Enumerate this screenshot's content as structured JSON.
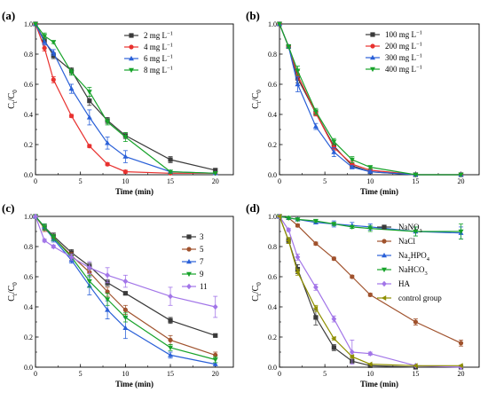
{
  "chart_data": [
    {
      "type": "line",
      "panel_label": "(a)",
      "xlabel": "Time (min)",
      "ylabel": "C",
      "ylabel_sub": "t",
      "ylabel_den": "/C",
      "ylabel_den_sub": "0",
      "xlim": [
        0,
        22
      ],
      "ylim": [
        0,
        1.0
      ],
      "xticks": [
        0,
        5,
        10,
        15,
        20
      ],
      "yticks": [
        0,
        0.2,
        0.4,
        0.6,
        0.8,
        1.0
      ],
      "xtick_labels": [
        "0",
        "5",
        "10",
        "15",
        "20"
      ],
      "ytick_labels": [
        "0.0",
        "0.2",
        "0.4",
        "0.6",
        "0.8",
        "1.0"
      ],
      "legend_position": "top-center",
      "x": [
        0,
        1,
        2,
        4,
        6,
        8,
        10,
        15,
        20
      ],
      "series": [
        {
          "name": "2 mg L",
          "unit_sup": "−1",
          "color": "#3a3a3a",
          "marker": "square",
          "values": [
            1.0,
            0.89,
            0.79,
            0.69,
            0.49,
            0.36,
            0.26,
            0.1,
            0.03
          ],
          "errors": [
            0,
            0.02,
            0.02,
            0.02,
            0.03,
            0.02,
            0.02,
            0.02,
            0.01
          ]
        },
        {
          "name": "4 mg L",
          "unit_sup": "−1",
          "color": "#e8312f",
          "marker": "circle",
          "values": [
            1.0,
            0.84,
            0.63,
            0.39,
            0.19,
            0.07,
            0.02,
            0.01,
            0.01
          ],
          "errors": [
            0,
            0.02,
            0.02,
            0.01,
            0.01,
            0.01,
            0.01,
            0,
            0
          ]
        },
        {
          "name": "6 mg L",
          "unit_sup": "−1",
          "color": "#2a60d8",
          "marker": "triangle-up",
          "values": [
            1.0,
            0.88,
            0.81,
            0.57,
            0.38,
            0.21,
            0.12,
            0.02,
            0.01
          ],
          "errors": [
            0,
            0.02,
            0.02,
            0.03,
            0.05,
            0.04,
            0.04,
            0.01,
            0
          ]
        },
        {
          "name": "8 mg L",
          "unit_sup": "−1",
          "color": "#17a32a",
          "marker": "triangle-down",
          "values": [
            1.0,
            0.92,
            0.88,
            0.68,
            0.55,
            0.35,
            0.25,
            0.02,
            0.01
          ],
          "errors": [
            0,
            0.02,
            0.01,
            0.02,
            0.03,
            0.02,
            0.03,
            0.01,
            0
          ]
        }
      ]
    },
    {
      "type": "line",
      "panel_label": "(b)",
      "xlabel": "Time (min)",
      "ylabel": "C",
      "ylabel_sub": "t",
      "ylabel_den": "/C",
      "ylabel_den_sub": "0",
      "xlim": [
        0,
        22
      ],
      "ylim": [
        0,
        1.0
      ],
      "xticks": [
        0,
        5,
        10,
        15,
        20
      ],
      "yticks": [
        0,
        0.2,
        0.4,
        0.6,
        0.8,
        1.0
      ],
      "xtick_labels": [
        "0",
        "5",
        "10",
        "15",
        "20"
      ],
      "ytick_labels": [
        "0.0",
        "0.2",
        "0.4",
        "0.6",
        "0.8",
        "1.0"
      ],
      "legend_position": "top-right",
      "x": [
        0,
        1,
        2,
        4,
        6,
        8,
        10,
        15,
        20
      ],
      "series": [
        {
          "name": "100 mg L",
          "unit_sup": "−1",
          "color": "#3a3a3a",
          "marker": "square",
          "values": [
            1.0,
            0.85,
            0.64,
            0.41,
            0.19,
            0.06,
            0.02,
            0.0,
            0.0
          ],
          "errors": [
            0,
            0.01,
            0.03,
            0.02,
            0.02,
            0.02,
            0.01,
            0,
            0
          ]
        },
        {
          "name": "200 mg L",
          "unit_sup": "−1",
          "color": "#e8312f",
          "marker": "circle",
          "values": [
            1.0,
            0.85,
            0.66,
            0.41,
            0.18,
            0.07,
            0.03,
            0.0,
            0.0
          ],
          "errors": [
            0,
            0.01,
            0.03,
            0.02,
            0.02,
            0.02,
            0.01,
            0,
            0
          ]
        },
        {
          "name": "300 mg L",
          "unit_sup": "−1",
          "color": "#2a60d8",
          "marker": "triangle-up",
          "values": [
            1.0,
            0.85,
            0.6,
            0.32,
            0.15,
            0.05,
            0.02,
            0.0,
            0.0
          ],
          "errors": [
            0,
            0.01,
            0.05,
            0.02,
            0.03,
            0.01,
            0.01,
            0,
            0
          ]
        },
        {
          "name": "400 mg L",
          "unit_sup": "−1",
          "color": "#17a32a",
          "marker": "triangle-down",
          "values": [
            1.0,
            0.85,
            0.69,
            0.42,
            0.22,
            0.1,
            0.05,
            0.0,
            0.0
          ],
          "errors": [
            0,
            0.01,
            0.03,
            0.02,
            0.02,
            0.02,
            0.01,
            0,
            0
          ]
        }
      ]
    },
    {
      "type": "line",
      "panel_label": "(c)",
      "xlabel": "Time (min)",
      "ylabel": "C",
      "ylabel_sub": "t",
      "ylabel_den": "/C",
      "ylabel_den_sub": "0",
      "xlim": [
        0,
        22
      ],
      "ylim": [
        0,
        1.0
      ],
      "xticks": [
        0,
        5,
        10,
        15,
        20
      ],
      "yticks": [
        0,
        0.2,
        0.4,
        0.6,
        0.8,
        1.0
      ],
      "xtick_labels": [
        "0",
        "5",
        "10",
        "15",
        "20"
      ],
      "ytick_labels": [
        "0.0",
        "0.2",
        "0.4",
        "0.6",
        "0.8",
        "1.0"
      ],
      "legend_position": "right",
      "x": [
        0,
        1,
        2,
        4,
        6,
        8,
        10,
        15,
        20
      ],
      "series": [
        {
          "name": "3",
          "unit_sup": "",
          "color": "#3a3a3a",
          "marker": "square",
          "values": [
            1.0,
            0.93,
            0.87,
            0.76,
            0.67,
            0.56,
            0.49,
            0.31,
            0.21
          ],
          "errors": [
            0,
            0.02,
            0.02,
            0.02,
            0.02,
            0.02,
            0.01,
            0.02,
            0.01
          ]
        },
        {
          "name": "5",
          "unit_sup": "",
          "color": "#a0522d",
          "marker": "circle",
          "values": [
            1.0,
            0.92,
            0.86,
            0.74,
            0.63,
            0.5,
            0.38,
            0.18,
            0.08
          ],
          "errors": [
            0,
            0.02,
            0.02,
            0.02,
            0.03,
            0.03,
            0.03,
            0.03,
            0.02
          ]
        },
        {
          "name": "7",
          "unit_sup": "",
          "color": "#2a60d8",
          "marker": "triangle-up",
          "values": [
            1.0,
            0.93,
            0.85,
            0.71,
            0.54,
            0.38,
            0.26,
            0.08,
            0.02
          ],
          "errors": [
            0,
            0.02,
            0.02,
            0.02,
            0.06,
            0.06,
            0.07,
            0.02,
            0.01
          ]
        },
        {
          "name": "9",
          "unit_sup": "",
          "color": "#17a32a",
          "marker": "triangle-down",
          "values": [
            1.0,
            0.93,
            0.86,
            0.73,
            0.57,
            0.45,
            0.33,
            0.13,
            0.05
          ],
          "errors": [
            0,
            0.02,
            0.02,
            0.02,
            0.04,
            0.04,
            0.03,
            0.02,
            0.02
          ]
        },
        {
          "name": "11",
          "unit_sup": "",
          "color": "#a275e8",
          "marker": "diamond",
          "values": [
            1.0,
            0.84,
            0.8,
            0.73,
            0.66,
            0.61,
            0.57,
            0.47,
            0.4
          ],
          "errors": [
            0,
            0.01,
            0.01,
            0.02,
            0.04,
            0.05,
            0.04,
            0.06,
            0.07
          ]
        }
      ]
    },
    {
      "type": "line",
      "panel_label": "(d)",
      "xlabel": "Time (min)",
      "ylabel": "C",
      "ylabel_sub": "t",
      "ylabel_den": "/C",
      "ylabel_den_sub": "0",
      "xlim": [
        0,
        22
      ],
      "ylim": [
        0,
        1.0
      ],
      "xticks": [
        0,
        5,
        10,
        15,
        20
      ],
      "yticks": [
        0,
        0.2,
        0.4,
        0.6,
        0.8,
        1.0
      ],
      "xtick_labels": [
        "0",
        "5",
        "10",
        "15",
        "20"
      ],
      "ytick_labels": [
        "0.0",
        "0.2",
        "0.4",
        "0.6",
        "0.8",
        "1.0"
      ],
      "legend_position": "right",
      "x": [
        0,
        1,
        2,
        4,
        6,
        8,
        10,
        15,
        20
      ],
      "series": [
        {
          "name": "NaNO",
          "sub": "3",
          "name_tail": "",
          "color": "#3a3a3a",
          "marker": "square",
          "values": [
            1.0,
            0.84,
            0.65,
            0.33,
            0.13,
            0.04,
            0.01,
            0.0,
            0.0
          ],
          "errors": [
            0,
            0.02,
            0.03,
            0.05,
            0.02,
            0.01,
            0,
            0,
            0
          ]
        },
        {
          "name": "NaCl",
          "sub": "",
          "name_tail": "",
          "color": "#a0522d",
          "marker": "circle",
          "values": [
            1.0,
            0.99,
            0.94,
            0.82,
            0.72,
            0.6,
            0.48,
            0.3,
            0.16
          ],
          "errors": [
            0,
            0.01,
            0.01,
            0.01,
            0.01,
            0.01,
            0.01,
            0.02,
            0.02
          ]
        },
        {
          "name": "Na",
          "sub": "2",
          "name_tail": "HPO",
          "sub2": "4",
          "color": "#2a60d8",
          "marker": "triangle-up",
          "values": [
            1.0,
            0.99,
            0.98,
            0.96,
            0.95,
            0.94,
            0.93,
            0.9,
            0.89
          ],
          "errors": [
            0,
            0.01,
            0.01,
            0.01,
            0.02,
            0.02,
            0.02,
            0.03,
            0.04
          ]
        },
        {
          "name": "NaHCO",
          "sub": "3",
          "name_tail": "",
          "color": "#17a32a",
          "marker": "triangle-down",
          "values": [
            1.0,
            0.99,
            0.98,
            0.97,
            0.95,
            0.93,
            0.92,
            0.9,
            0.9
          ],
          "errors": [
            0,
            0.01,
            0.01,
            0.01,
            0.01,
            0.01,
            0.02,
            0.03,
            0.05
          ]
        },
        {
          "name": "HA",
          "sub": "",
          "name_tail": "",
          "color": "#a275e8",
          "marker": "diamond",
          "values": [
            1.0,
            0.91,
            0.73,
            0.53,
            0.32,
            0.1,
            0.09,
            0.01,
            0.0
          ],
          "errors": [
            0,
            0.01,
            0.02,
            0.02,
            0.02,
            0.08,
            0.01,
            0,
            0
          ]
        },
        {
          "name": "control group",
          "sub": "",
          "name_tail": "",
          "color": "#8f8f00",
          "marker": "triangle-left",
          "values": [
            1.0,
            0.84,
            0.63,
            0.39,
            0.19,
            0.07,
            0.02,
            0.01,
            0.01
          ],
          "errors": [
            0,
            0.02,
            0.02,
            0.02,
            0.01,
            0.01,
            0,
            0,
            0
          ]
        }
      ]
    }
  ]
}
